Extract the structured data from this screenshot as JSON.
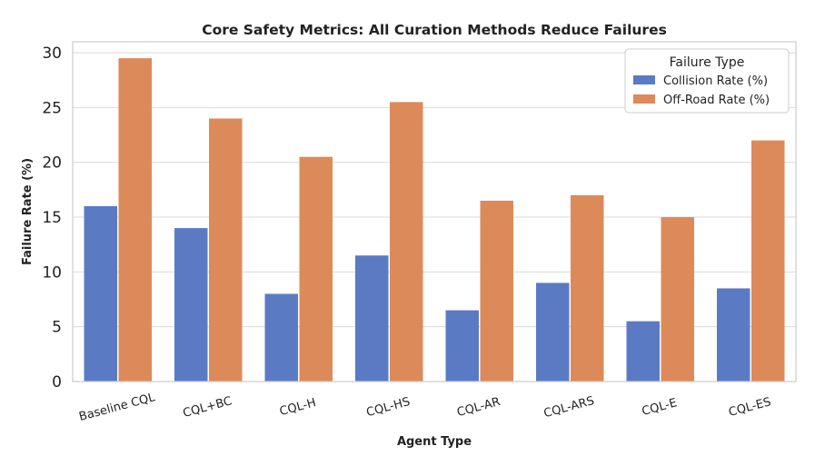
{
  "chart_data": {
    "type": "bar",
    "title": "Core Safety Metrics: All Curation Methods Reduce Failures",
    "xlabel": "Agent Type",
    "ylabel": "Failure Rate (%)",
    "ylim": [
      0,
      31
    ],
    "yticks": [
      0,
      5,
      10,
      15,
      20,
      25,
      30
    ],
    "grid": true,
    "legend": {
      "title": "Failure Type",
      "position": "top-right"
    },
    "categories": [
      "Baseline CQL",
      "CQL+BC",
      "CQL-H",
      "CQL-HS",
      "CQL-AR",
      "CQL-ARS",
      "CQL-E",
      "CQL-ES"
    ],
    "series": [
      {
        "name": "Collision Rate (%)",
        "color": "#5a7bc4",
        "values": [
          16,
          14,
          8,
          11.5,
          6.5,
          9,
          5.5,
          8.5
        ]
      },
      {
        "name": "Off-Road Rate (%)",
        "color": "#dd8a5a",
        "values": [
          29.5,
          24,
          20.5,
          25.5,
          16.5,
          17,
          15,
          22
        ]
      }
    ]
  }
}
